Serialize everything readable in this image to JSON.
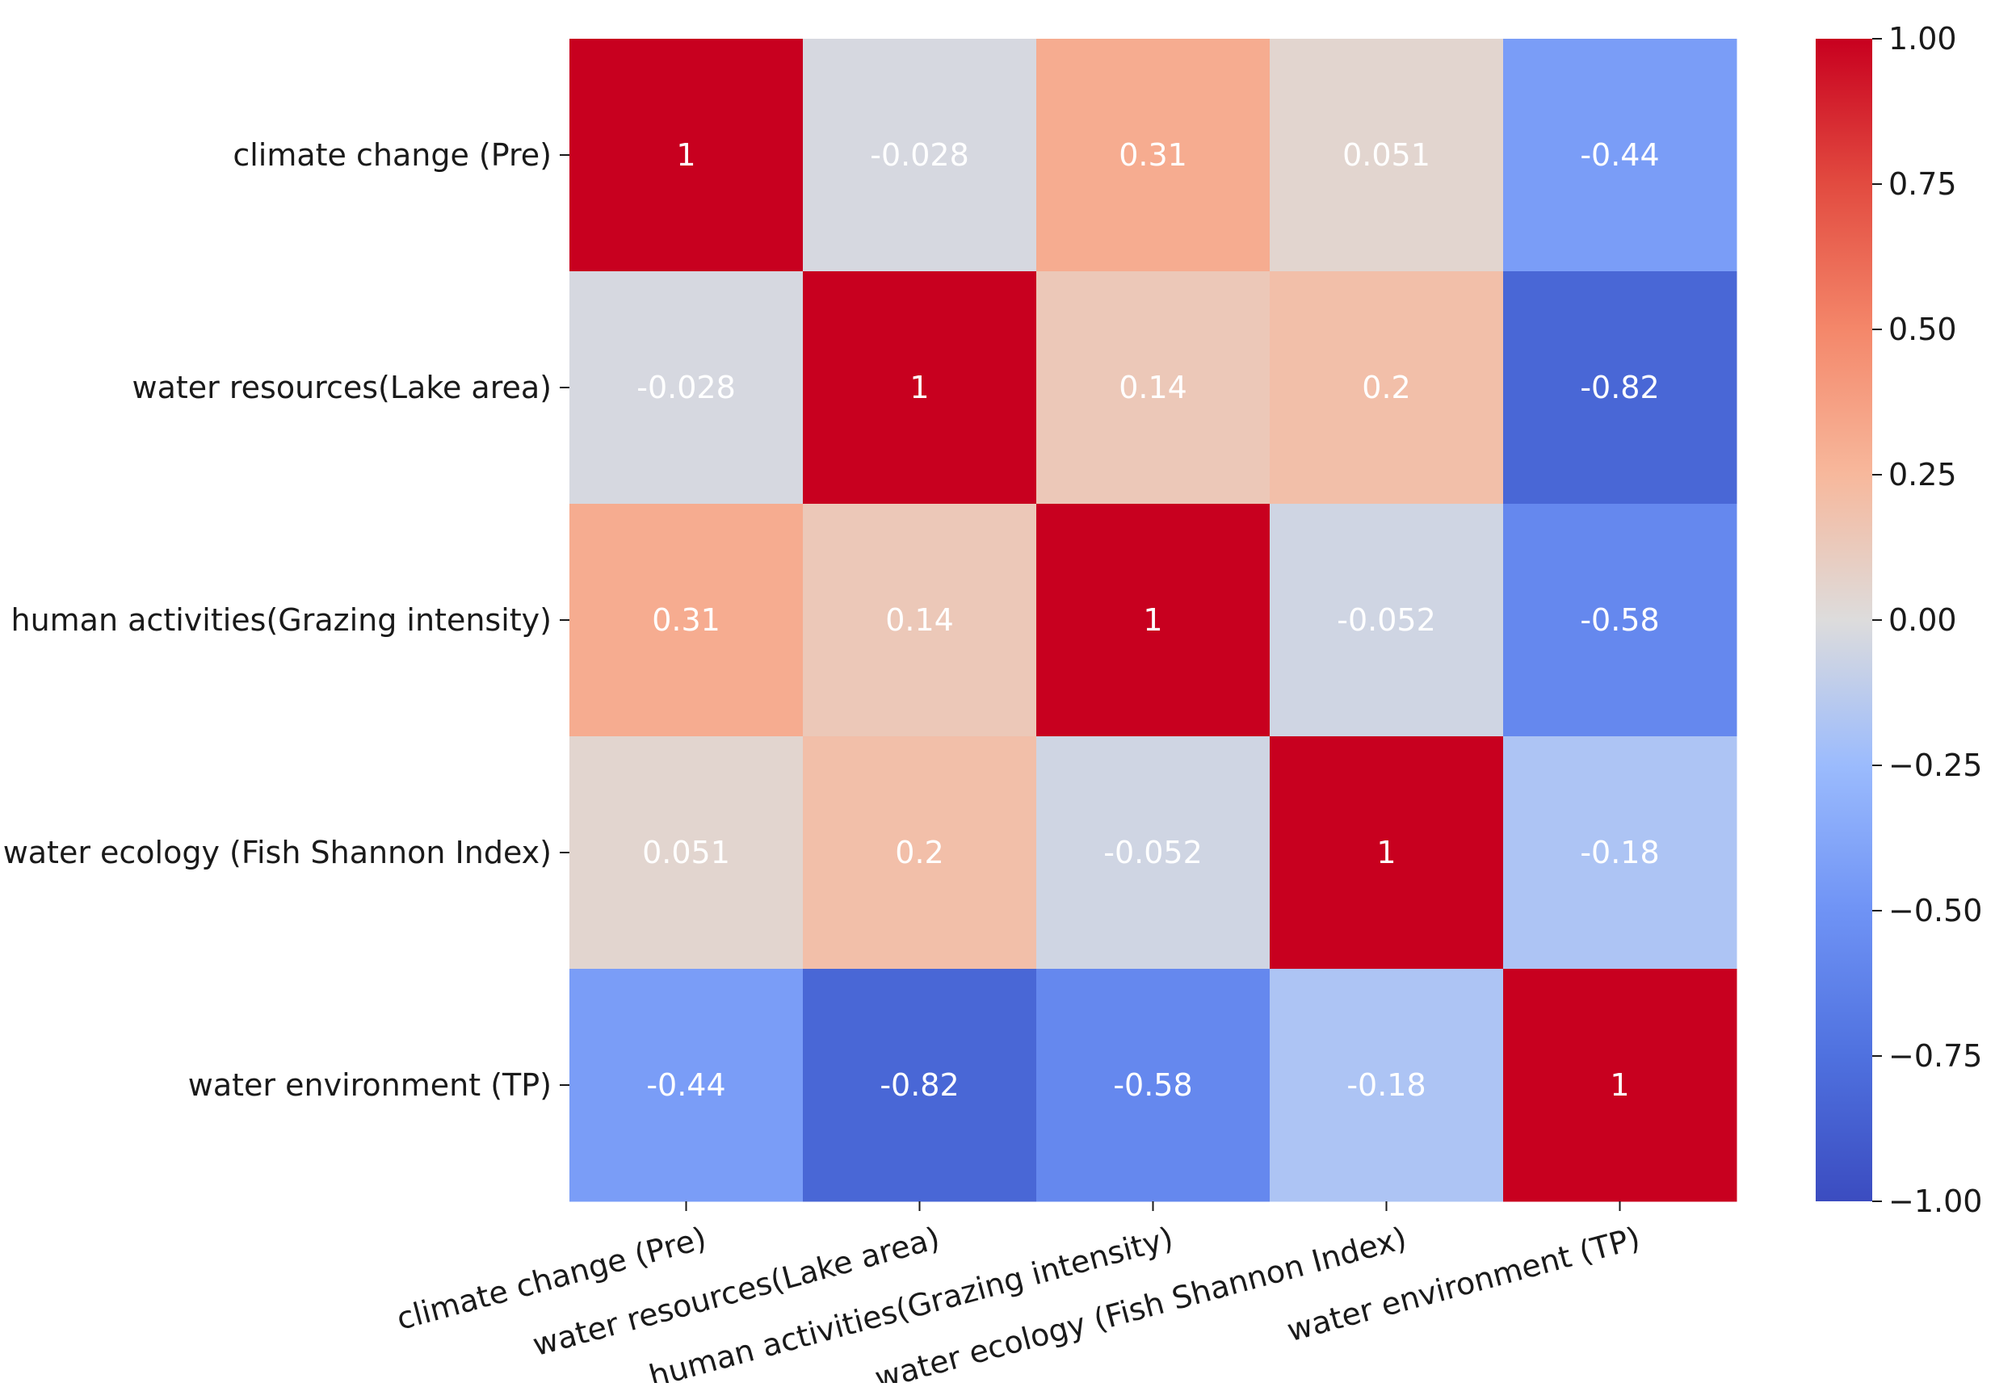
{
  "chart_data": {
    "type": "heatmap",
    "title": "",
    "xlabel": "",
    "ylabel": "",
    "row_labels": [
      "climate change (Pre)",
      "water resources(Lake area)",
      "human activities(Grazing intensity)",
      "water ecology (Fish Shannon Index)",
      "water environment (TP)"
    ],
    "col_labels": [
      "climate change (Pre)",
      "water resources(Lake area)",
      "human activities(Grazing intensity)",
      "water ecology (Fish Shannon Index)",
      "water environment (TP)"
    ],
    "values": [
      [
        1,
        -0.028,
        0.31,
        0.051,
        -0.44
      ],
      [
        -0.028,
        1,
        0.14,
        0.2,
        -0.82
      ],
      [
        0.31,
        0.14,
        1,
        -0.052,
        -0.58
      ],
      [
        0.051,
        0.2,
        -0.052,
        1,
        -0.18
      ],
      [
        -0.44,
        -0.82,
        -0.58,
        -0.18,
        1
      ]
    ],
    "cell_labels": [
      [
        "1",
        "-0.028",
        "0.31",
        "0.051",
        "-0.44"
      ],
      [
        "-0.028",
        "1",
        "0.14",
        "0.2",
        "-0.82"
      ],
      [
        "0.31",
        "0.14",
        "1",
        "-0.052",
        "-0.58"
      ],
      [
        "0.051",
        "0.2",
        "-0.052",
        "1",
        "-0.18"
      ],
      [
        "-0.44",
        "-0.82",
        "-0.58",
        "-0.18",
        "1"
      ]
    ],
    "colormap": "coolwarm",
    "vmin": -1.0,
    "vmax": 1.0,
    "colorbar": {
      "ticks": [
        1.0,
        0.75,
        0.5,
        0.25,
        0.0,
        -0.25,
        -0.5,
        -0.75,
        -1.0
      ],
      "tick_labels": [
        "1.00",
        "0.75",
        "0.50",
        "0.25",
        "0.00",
        "−0.25",
        "−0.50",
        "−0.75",
        "−1.00"
      ],
      "colors": [
        [
          -1.0,
          "#3b4cc0"
        ],
        [
          -0.75,
          "#4f71df"
        ],
        [
          -0.5,
          "#6f93f5"
        ],
        [
          -0.25,
          "#9bbbfd"
        ],
        [
          0.0,
          "#dddcdc"
        ],
        [
          0.25,
          "#f7b89c"
        ],
        [
          0.5,
          "#f4876a"
        ],
        [
          0.75,
          "#e24b40"
        ],
        [
          1.0,
          "#c8001f"
        ]
      ]
    }
  }
}
